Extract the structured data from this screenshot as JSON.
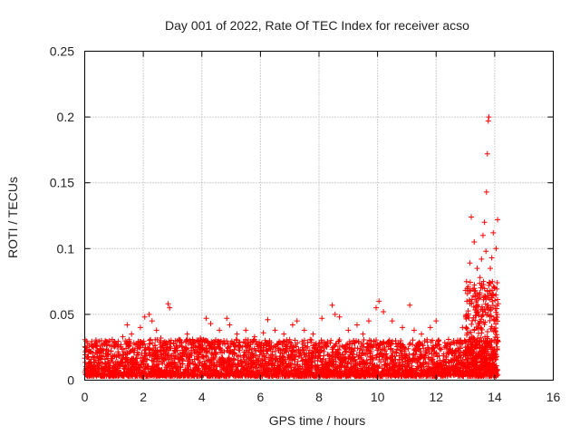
{
  "chart_data": {
    "type": "scatter",
    "title": "Day 001 of 2022, Rate Of TEC Index for receiver acso",
    "xlabel": "GPS time / hours",
    "ylabel": "ROTI / TECUs",
    "xlim": [
      0,
      16
    ],
    "ylim": [
      0,
      0.25
    ],
    "x_ticks": [
      0,
      2,
      4,
      6,
      8,
      10,
      12,
      14,
      16
    ],
    "x_tick_labels": [
      "0",
      "2",
      "4",
      "6",
      "8",
      "10",
      "12",
      "14",
      "16"
    ],
    "y_ticks": [
      0,
      0.05,
      0.1,
      0.15,
      0.2,
      0.25
    ],
    "y_tick_labels": [
      "0",
      "0.05",
      "0.1",
      "0.15",
      "0.2",
      "0.25"
    ],
    "grid": true,
    "marker": "+",
    "series_color": "#ff0000",
    "series": [
      {
        "x": [
          0.1,
          0.3,
          0.55,
          0.7,
          1.0,
          1.3,
          1.45,
          1.6,
          1.9,
          2.05,
          2.2,
          2.3,
          2.45,
          2.6,
          2.85,
          2.9,
          3.1,
          3.3,
          3.5,
          3.7,
          3.95,
          4.15,
          4.3,
          4.6,
          4.85,
          4.95,
          5.2,
          5.5,
          5.8,
          6.1,
          6.25,
          6.5,
          6.8,
          7.1,
          7.25,
          7.5,
          7.8,
          8.1,
          8.45,
          8.55,
          8.7,
          9.0,
          9.3,
          9.5,
          9.7,
          9.95,
          10.05,
          10.2,
          10.5,
          10.85,
          11.1,
          11.25,
          11.5,
          11.8,
          12.0,
          12.3,
          12.6,
          12.9,
          13.05,
          13.15,
          13.2,
          13.3,
          13.4,
          13.45,
          13.5,
          13.55,
          13.6,
          13.62,
          13.65,
          13.7,
          13.72,
          13.75,
          13.78,
          13.8,
          13.85,
          13.9,
          13.95,
          14.0,
          14.05,
          14.1,
          14.12
        ],
        "y": [
          0.018,
          0.025,
          0.022,
          0.03,
          0.028,
          0.033,
          0.042,
          0.035,
          0.04,
          0.048,
          0.05,
          0.045,
          0.038,
          0.032,
          0.058,
          0.055,
          0.03,
          0.028,
          0.035,
          0.025,
          0.032,
          0.047,
          0.043,
          0.038,
          0.047,
          0.042,
          0.035,
          0.038,
          0.033,
          0.036,
          0.046,
          0.038,
          0.035,
          0.042,
          0.045,
          0.038,
          0.035,
          0.047,
          0.057,
          0.05,
          0.048,
          0.038,
          0.042,
          0.035,
          0.045,
          0.055,
          0.06,
          0.052,
          0.045,
          0.04,
          0.057,
          0.038,
          0.035,
          0.04,
          0.045,
          0.025,
          0.03,
          0.04,
          0.06,
          0.089,
          0.124,
          0.105,
          0.085,
          0.062,
          0.078,
          0.092,
          0.11,
          0.075,
          0.12,
          0.098,
          0.143,
          0.172,
          0.197,
          0.2,
          0.085,
          0.093,
          0.112,
          0.07,
          0.1,
          0.122,
          0.058
        ]
      }
    ]
  }
}
